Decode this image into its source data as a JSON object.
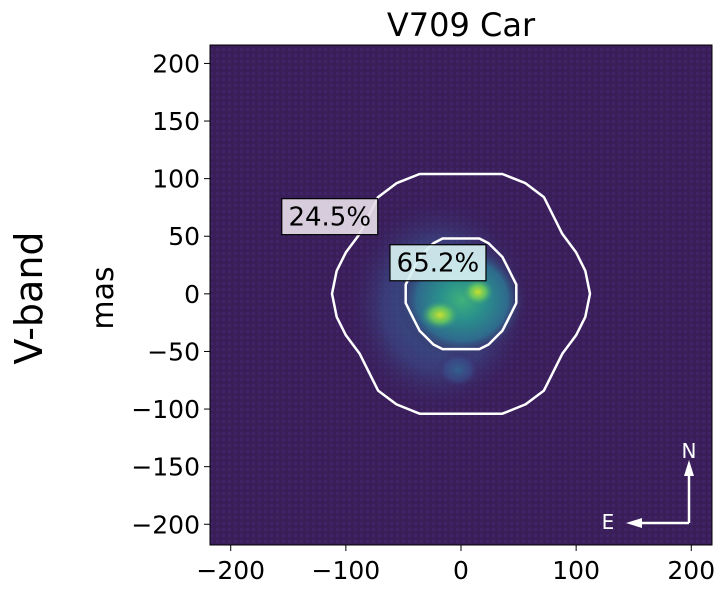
{
  "chart_data": {
    "type": "heatmap",
    "title": "V709 Car",
    "row_label": "V-band",
    "ylabel": "mas",
    "xlabel": "",
    "xlim": [
      -218,
      218
    ],
    "ylim": [
      -218,
      216
    ],
    "xticks": [
      -200,
      -100,
      0,
      100,
      200
    ],
    "xtick_labels": [
      "−200",
      "−100",
      "0",
      "100",
      "200"
    ],
    "yticks": [
      200,
      150,
      100,
      50,
      0,
      -50,
      -100,
      -150,
      -200
    ],
    "ytick_labels": [
      "200",
      "150",
      "100",
      "50",
      "0",
      "−50",
      "−100",
      "−150",
      "−200"
    ],
    "colormap": "viridis",
    "background_color": "#3b1d5c",
    "contour_color": "#ffffff",
    "contours": [
      {
        "name": "inner",
        "radius_mas": 48,
        "label": "65.2%",
        "label_at": [
          -20,
          27
        ]
      },
      {
        "name": "outer",
        "radius_mas": 107,
        "label": "24.5%",
        "label_at": [
          -114,
          67
        ]
      }
    ],
    "label_box_colors": [
      "#d6f0f1",
      "#e4dbe7"
    ],
    "compass": {
      "north": "N",
      "east": "E"
    }
  }
}
